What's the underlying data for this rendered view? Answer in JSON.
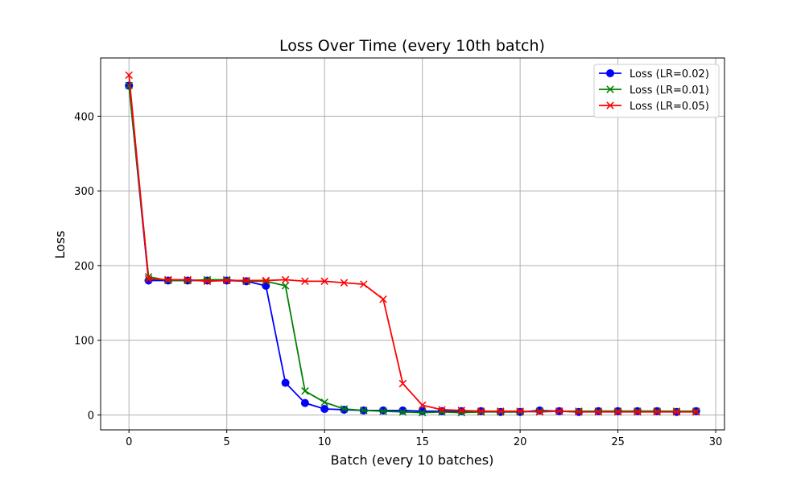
{
  "chart_data": {
    "type": "line",
    "title": "Loss Over Time (every 10th batch)",
    "xlabel": "Batch (every 10 batches)",
    "ylabel": "Loss",
    "xlim": [
      -1.45,
      30.45
    ],
    "ylim": [
      -20,
      478
    ],
    "xticks": [
      0,
      5,
      10,
      15,
      20,
      25,
      30
    ],
    "yticks": [
      0,
      100,
      200,
      300,
      400
    ],
    "grid": true,
    "legend_position": "upper right",
    "x": [
      0,
      1,
      2,
      3,
      4,
      5,
      6,
      7,
      8,
      9,
      10,
      11,
      12,
      13,
      14,
      15,
      16,
      17,
      18,
      19,
      20,
      21,
      22,
      23,
      24,
      25,
      26,
      27,
      28,
      29
    ],
    "series": [
      {
        "name": "Loss (LR=0.02)",
        "color": "#0000ff",
        "marker": "circle",
        "values": [
          441,
          180,
          180,
          180,
          180,
          180,
          179,
          173,
          43,
          16,
          8,
          7,
          6,
          6,
          6,
          5,
          5,
          5,
          5,
          4,
          4,
          6,
          5,
          4,
          5,
          5,
          5,
          5,
          4,
          5
        ]
      },
      {
        "name": "Loss (LR=0.01)",
        "color": "#008000",
        "marker": "x",
        "values": [
          441,
          185,
          180,
          180,
          181,
          181,
          179,
          179,
          173,
          32,
          17,
          8,
          6,
          5,
          4,
          3,
          4,
          3,
          4,
          4,
          4,
          5,
          5,
          5,
          5,
          5,
          5,
          5,
          5,
          5
        ]
      },
      {
        "name": "Loss (LR=0.05)",
        "color": "#ff0000",
        "marker": "x",
        "values": [
          455,
          182,
          181,
          181,
          179,
          180,
          180,
          180,
          181,
          179,
          179,
          177,
          175,
          155,
          42,
          13,
          7,
          6,
          5,
          5,
          5,
          4,
          5,
          4,
          4,
          4,
          4,
          4,
          4,
          4
        ]
      }
    ]
  }
}
